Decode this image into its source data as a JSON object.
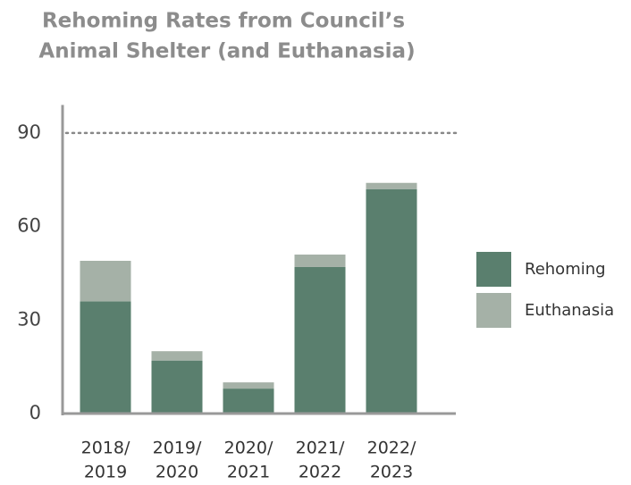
{
  "chart_data": {
    "type": "stacked_bar",
    "title": [
      "Rehoming Rates from Council’s",
      "Animal Shelter (and Euthanasia)"
    ],
    "categories": [
      [
        "2018/",
        "2019"
      ],
      [
        "2019/",
        "2020"
      ],
      [
        "2020/",
        "2021"
      ],
      [
        "2021/",
        "2022"
      ],
      [
        "2022/",
        "2023"
      ]
    ],
    "series": [
      {
        "name": "Rehoming",
        "color": "#5a7f6e",
        "values": [
          36,
          17,
          8,
          47,
          72
        ]
      },
      {
        "name": "Euthanasia",
        "color": "#a5b1a7",
        "values": [
          13,
          3,
          2,
          4,
          2
        ]
      }
    ],
    "ylim": [
      0,
      99
    ],
    "yticks": [
      0,
      30,
      60,
      90
    ],
    "reference_line": 90,
    "legend": "right"
  }
}
